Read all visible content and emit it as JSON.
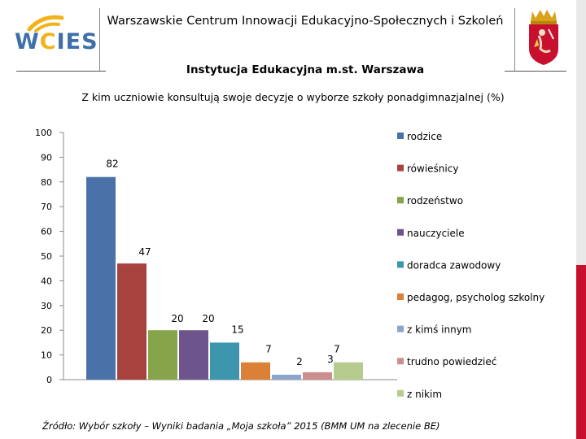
{
  "header": {
    "logo_text_a": "W",
    "logo_text_c": "C",
    "logo_text_b": "IES",
    "title": "Warszawskie Centrum Innowacji Edukacyjno-Społecznych i Szkoleń",
    "subtitle": "Instytucja Edukacyjna m.st. Warszawa"
  },
  "colors": {
    "logo_blue": "#3e6fa8",
    "logo_yellow": "#f2b21a",
    "side_red": "#c8102e",
    "side_gray": "#e9e9e9"
  },
  "chart_data": {
    "type": "bar",
    "title": "Z kim uczniowie konsultują swoje decyzje o wyborze szkoły ponadgimnazjalnej (%)",
    "xlabel": "",
    "ylabel": "",
    "ylim": [
      0,
      100
    ],
    "yticks": [
      0,
      10,
      20,
      30,
      40,
      50,
      60,
      70,
      80,
      90,
      100
    ],
    "grid": false,
    "legend_position": "right",
    "series": [
      {
        "name": "rodzice",
        "value": 82,
        "color": "#4a72a8"
      },
      {
        "name": "rówieśnicy",
        "value": 47,
        "color": "#a8423f"
      },
      {
        "name": "rodzeństwo",
        "value": 20,
        "color": "#86a44a"
      },
      {
        "name": "nauczyciele",
        "value": 20,
        "color": "#6e548d"
      },
      {
        "name": "doradca zawodowy",
        "value": 15,
        "color": "#3d96ae"
      },
      {
        "name": "pedagog, psycholog szkolny",
        "value": 7,
        "color": "#da8137"
      },
      {
        "name": "z kimś innym",
        "value": 2,
        "color": "#8ea5cb"
      },
      {
        "name": "trudno powiedzieć",
        "value": 3,
        "color": "#cd8f8e"
      },
      {
        "name": "z nikim",
        "value": 7,
        "color": "#b5cc8e"
      }
    ]
  },
  "source": "Źródło: Wybór szkoły – Wyniki badania „Moja szkoła” 2015 (BMM UM na zlecenie BE)"
}
